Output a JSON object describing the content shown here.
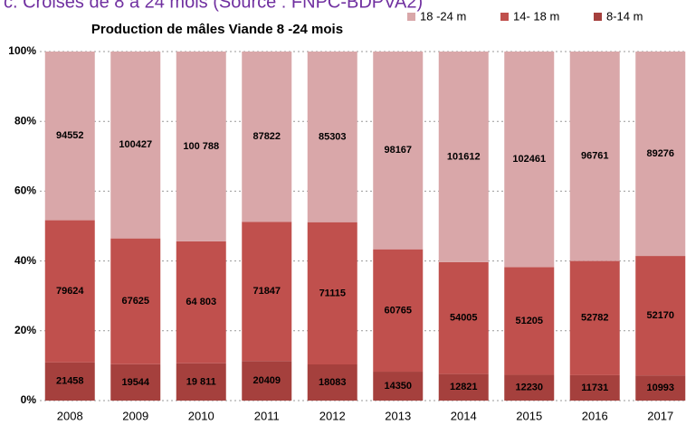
{
  "header": "c. Croisés de 8 à 24 mois (Source : FNPC-BDPVA2)",
  "chart_data": {
    "type": "bar",
    "stacked": "percent",
    "title": "Production de mâles Viande 8 -24 mois",
    "categories": [
      "2008",
      "2009",
      "2010",
      "2011",
      "2012",
      "2013",
      "2014",
      "2015",
      "2016",
      "2017"
    ],
    "series": [
      {
        "name": "8-14 m",
        "color": "#a5403d",
        "values": [
          21458,
          19544,
          19811,
          20409,
          18083,
          14350,
          12821,
          12230,
          11731,
          10993
        ],
        "value_labels": [
          "21458",
          "19544",
          "19 811",
          "20409",
          "18083",
          "14350",
          "12821",
          "12230",
          "11731",
          "10993"
        ]
      },
      {
        "name": "14- 18 m",
        "color": "#c0504d",
        "values": [
          79624,
          67625,
          64803,
          71847,
          71115,
          60765,
          54005,
          51205,
          52782,
          52170
        ],
        "value_labels": [
          "79624",
          "67625",
          "64 803",
          "71847",
          "71115",
          "60765",
          "54005",
          "51205",
          "52782",
          "52170"
        ]
      },
      {
        "name": "18 -24 m",
        "color": "#d9a7a9",
        "values": [
          94552,
          100427,
          100788,
          87822,
          85303,
          98167,
          101612,
          102461,
          96761,
          89276
        ],
        "value_labels": [
          "94552",
          "100427",
          "100 788",
          "87822",
          "85303",
          "98167",
          "101612",
          "102461",
          "96761",
          "89276"
        ]
      }
    ],
    "ylim": [
      0,
      100
    ],
    "yticks": [
      {
        "value": 0,
        "label": "0%"
      },
      {
        "value": 20,
        "label": "20%"
      },
      {
        "value": 40,
        "label": "40%"
      },
      {
        "value": 60,
        "label": "60%"
      },
      {
        "value": 80,
        "label": "80%"
      },
      {
        "value": 100,
        "label": "100%"
      }
    ],
    "grid": true,
    "legend": "top-right"
  }
}
